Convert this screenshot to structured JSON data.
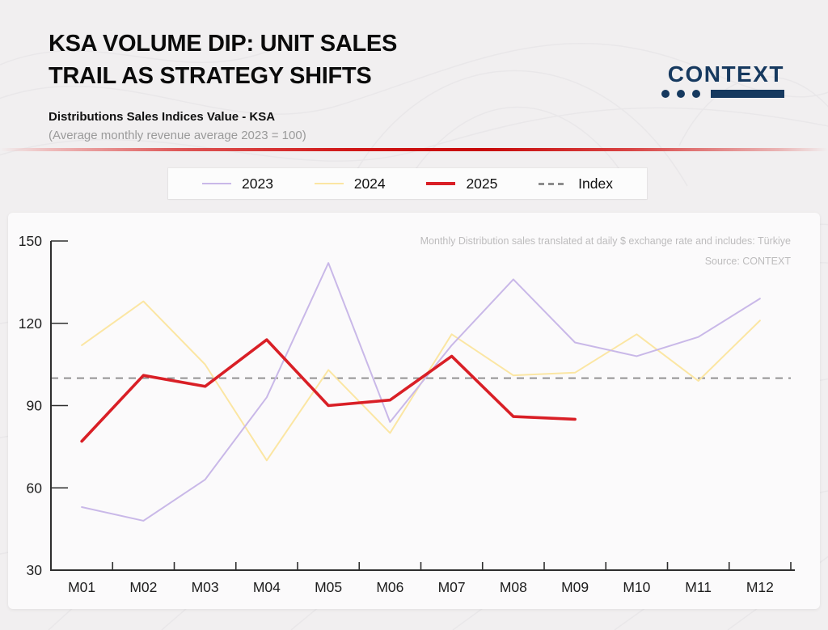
{
  "header": {
    "title_line1": "KSA VOLUME DIP: UNIT SALES",
    "title_line2": "TRAIL AS STRATEGY SHIFTS",
    "subtitle": "Distributions Sales Indices Value - KSA",
    "subtitle_note": "(Average monthly revenue average 2023 = 100)",
    "logo_text": "CONTEXT",
    "logo_color": "#16395f"
  },
  "legend": {
    "items": [
      {
        "label": "2023",
        "color": "#c9b8e8",
        "style": "solid-thin"
      },
      {
        "label": "2024",
        "color": "#fbe6a3",
        "style": "solid-thin"
      },
      {
        "label": "2025",
        "color": "#d91f26",
        "style": "solid-thick"
      },
      {
        "label": "Index",
        "color": "#8c8c8c",
        "style": "dashed"
      }
    ]
  },
  "chart_notes": {
    "line1": "Monthly Distribution sales translated at daily $ exchange rate and includes: Türkiye",
    "line2": "Source: CONTEXT"
  },
  "chart_data": {
    "type": "line",
    "title": "Distributions Sales Indices Value - KSA",
    "xlabel": "",
    "ylabel": "",
    "categories": [
      "M01",
      "M02",
      "M03",
      "M04",
      "M05",
      "M06",
      "M07",
      "M08",
      "M09",
      "M10",
      "M11",
      "M12"
    ],
    "series": [
      {
        "name": "2023",
        "color": "#c9b8e8",
        "width": 2,
        "values": [
          53,
          48,
          63,
          93,
          142,
          84,
          112,
          136,
          113,
          108,
          115,
          129
        ]
      },
      {
        "name": "2024",
        "color": "#fbe6a3",
        "width": 2,
        "values": [
          112,
          128,
          105,
          70,
          103,
          80,
          116,
          101,
          102,
          116,
          99,
          121
        ]
      },
      {
        "name": "2025",
        "color": "#d91f26",
        "width": 3.6,
        "values": [
          77,
          101,
          97,
          114,
          90,
          92,
          108,
          86,
          85,
          null,
          null,
          null
        ]
      }
    ],
    "index_line": {
      "name": "Index",
      "value": 100,
      "color": "#8c8c8c",
      "dashed": true
    },
    "ylim": [
      30,
      150
    ],
    "yticks": [
      30,
      60,
      90,
      120,
      150
    ],
    "grid": false,
    "legend_position": "top"
  }
}
